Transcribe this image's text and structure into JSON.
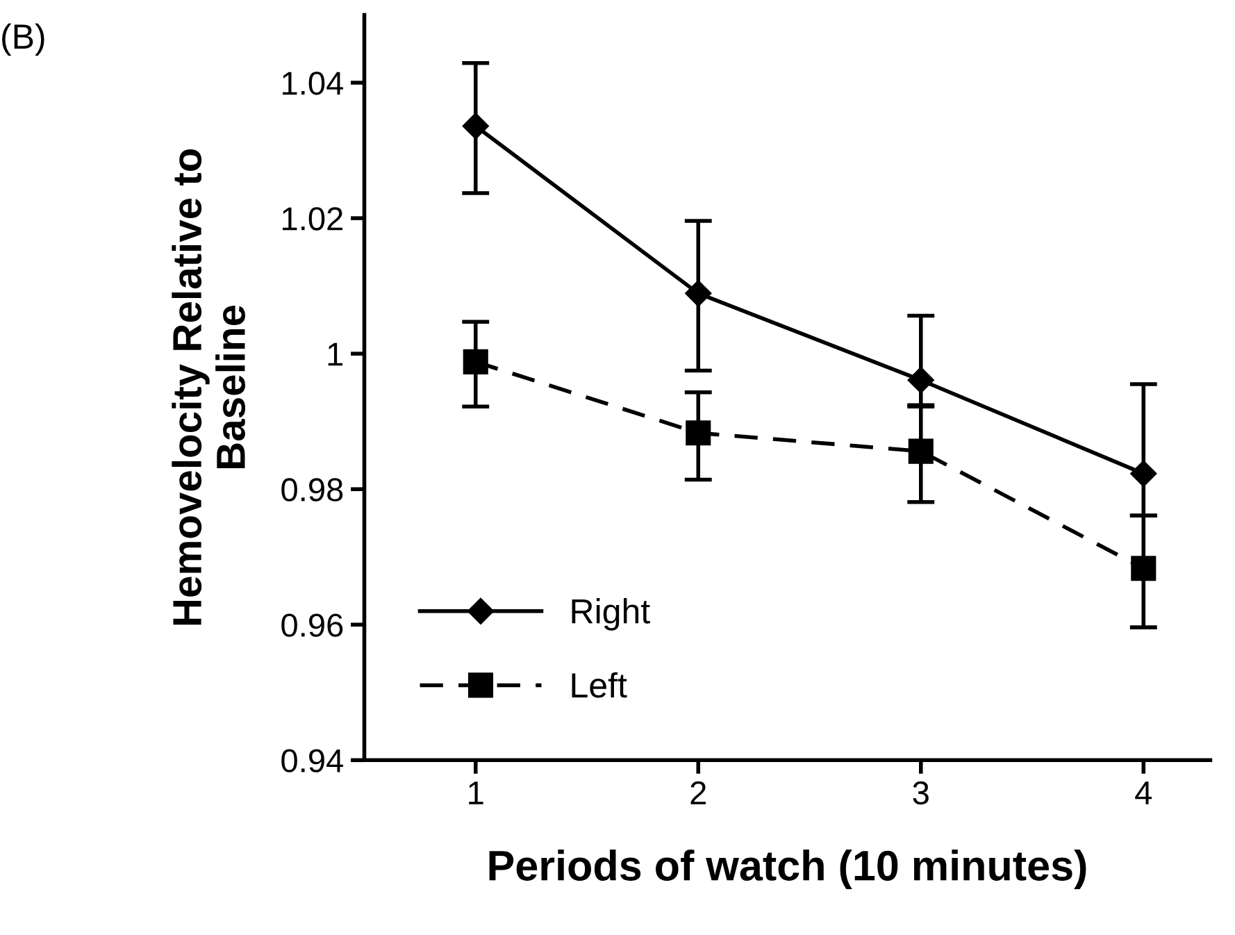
{
  "chart_data": {
    "type": "line",
    "xlabel": "Periods of watch (10 minutes)",
    "ylabel": "Hemovelocity Relative to\nBaseline",
    "x": [
      1,
      2,
      3,
      4
    ],
    "xlim": [
      0.5,
      4.3
    ],
    "xticks": [
      1,
      2,
      3,
      4
    ],
    "ylim": [
      0.94,
      1.05
    ],
    "yticks": [
      0.94,
      0.96,
      0.98,
      1,
      1.02,
      1.04
    ],
    "series": [
      {
        "name": "Right",
        "color": "#000000",
        "marker": "diamond",
        "line_style": "solid",
        "values": [
          1.0336,
          1.0089,
          0.9961,
          0.9823
        ],
        "errors": [
          [
            1.0237,
            1.0429
          ],
          [
            0.9975,
            1.0196
          ],
          [
            0.9924,
            1.0056
          ],
          [
            0.9761,
            0.9955
          ]
        ]
      },
      {
        "name": "Left",
        "color": "#000000",
        "marker": "square",
        "line_style": "dashed",
        "values": [
          0.9988,
          0.9883,
          0.9856,
          0.9683
        ],
        "errors": [
          [
            0.9922,
            1.0047
          ],
          [
            0.9814,
            0.9943
          ],
          [
            0.9781,
            0.9922
          ],
          [
            0.9596,
            0.9761
          ]
        ]
      }
    ],
    "grid": false,
    "legend": "bottom left",
    "annotations": [
      "(B)"
    ]
  }
}
